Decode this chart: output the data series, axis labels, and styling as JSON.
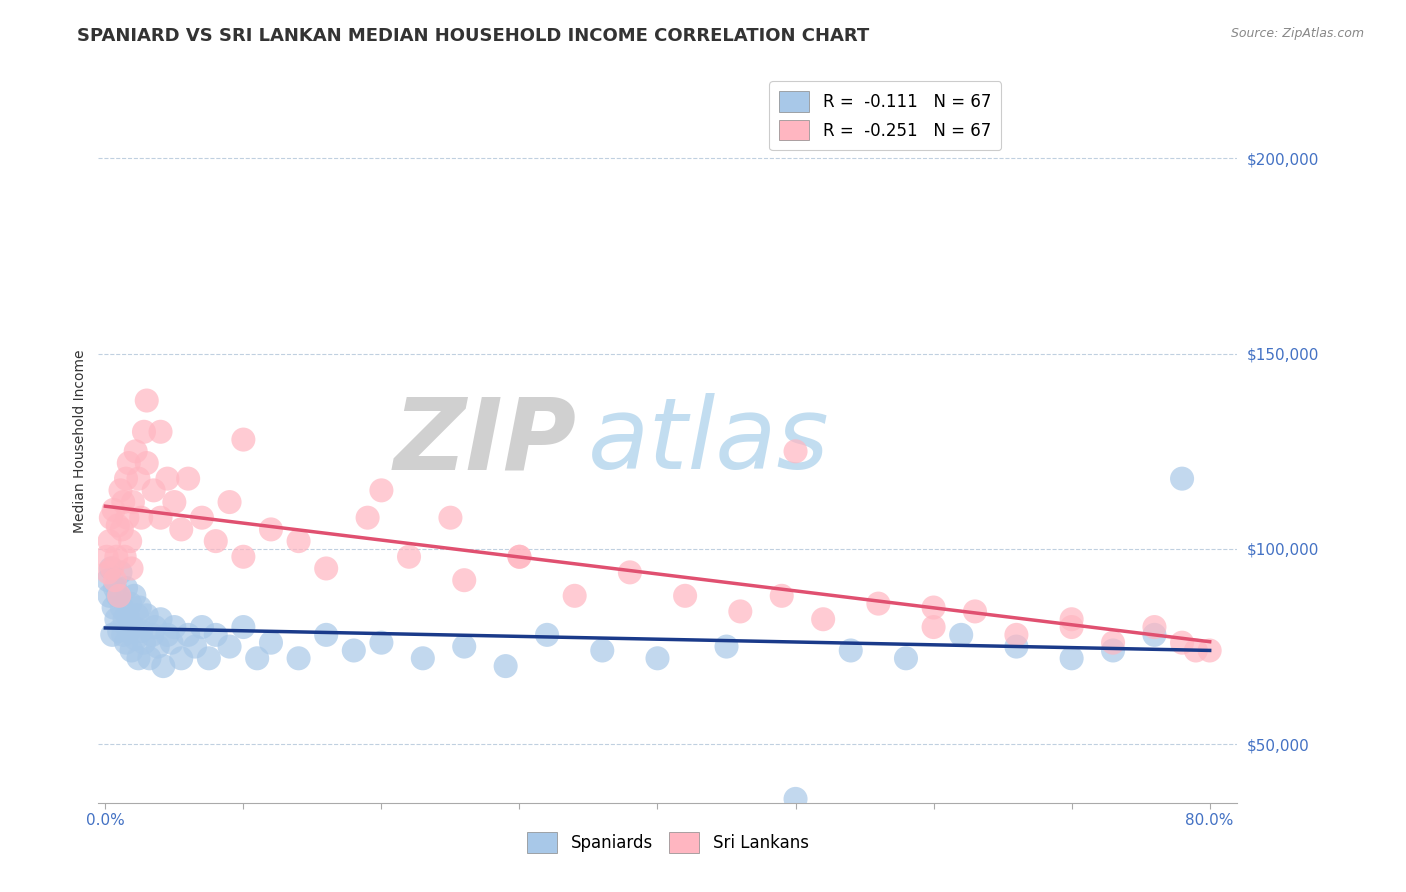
{
  "title": "SPANIARD VS SRI LANKAN MEDIAN HOUSEHOLD INCOME CORRELATION CHART",
  "source": "Source: ZipAtlas.com",
  "ylabel": "Median Household Income",
  "xlim": [
    -0.005,
    0.82
  ],
  "ylim": [
    35000,
    220000
  ],
  "yticks": [
    50000,
    100000,
    150000,
    200000
  ],
  "ytick_labels": [
    "$50,000",
    "$100,000",
    "$150,000",
    "$200,000"
  ],
  "xticks": [
    0.0,
    0.1,
    0.2,
    0.3,
    0.4,
    0.5,
    0.6,
    0.7,
    0.8
  ],
  "legend_entries": [
    {
      "label": "R =  -0.111   N = 67",
      "color": "#a8c8e8"
    },
    {
      "label": "R =  -0.251   N = 67",
      "color": "#ffb6c1"
    }
  ],
  "spaniards_color": "#a8c8e8",
  "srilankans_color": "#ffb6c1",
  "trend_spaniards_color": "#1a3a8a",
  "trend_srilankans_color": "#e05070",
  "watermark_zip_color": "#c8c8c8",
  "watermark_atlas_color": "#b8d8ee",
  "title_fontsize": 13,
  "axis_label_fontsize": 10,
  "tick_fontsize": 11,
  "legend_fontsize": 12,
  "spaniards_x": [
    0.002,
    0.003,
    0.004,
    0.005,
    0.006,
    0.007,
    0.008,
    0.009,
    0.01,
    0.011,
    0.012,
    0.013,
    0.014,
    0.015,
    0.015,
    0.016,
    0.017,
    0.018,
    0.019,
    0.02,
    0.021,
    0.022,
    0.023,
    0.024,
    0.025,
    0.026,
    0.028,
    0.03,
    0.032,
    0.034,
    0.036,
    0.038,
    0.04,
    0.042,
    0.045,
    0.048,
    0.05,
    0.055,
    0.06,
    0.065,
    0.07,
    0.075,
    0.08,
    0.09,
    0.1,
    0.11,
    0.12,
    0.14,
    0.16,
    0.18,
    0.2,
    0.23,
    0.26,
    0.29,
    0.32,
    0.36,
    0.4,
    0.45,
    0.5,
    0.54,
    0.58,
    0.62,
    0.66,
    0.7,
    0.73,
    0.76,
    0.78
  ],
  "spaniards_y": [
    92000,
    88000,
    95000,
    78000,
    85000,
    90000,
    82000,
    88000,
    79000,
    94000,
    85000,
    78000,
    82000,
    76000,
    90000,
    83000,
    79000,
    86000,
    74000,
    80000,
    88000,
    77000,
    83000,
    72000,
    85000,
    79000,
    76000,
    83000,
    72000,
    78000,
    80000,
    75000,
    82000,
    70000,
    78000,
    76000,
    80000,
    72000,
    78000,
    75000,
    80000,
    72000,
    78000,
    75000,
    80000,
    72000,
    76000,
    72000,
    78000,
    74000,
    76000,
    72000,
    75000,
    70000,
    78000,
    74000,
    72000,
    75000,
    36000,
    74000,
    72000,
    78000,
    75000,
    72000,
    74000,
    78000,
    118000
  ],
  "srilankans_x": [
    0.001,
    0.002,
    0.003,
    0.004,
    0.005,
    0.006,
    0.007,
    0.008,
    0.009,
    0.01,
    0.011,
    0.012,
    0.013,
    0.014,
    0.015,
    0.016,
    0.017,
    0.018,
    0.019,
    0.02,
    0.022,
    0.024,
    0.026,
    0.028,
    0.03,
    0.035,
    0.04,
    0.045,
    0.05,
    0.055,
    0.06,
    0.07,
    0.08,
    0.09,
    0.1,
    0.12,
    0.14,
    0.16,
    0.19,
    0.22,
    0.26,
    0.3,
    0.34,
    0.38,
    0.42,
    0.46,
    0.49,
    0.52,
    0.56,
    0.6,
    0.63,
    0.66,
    0.7,
    0.73,
    0.76,
    0.79,
    0.03,
    0.04,
    0.1,
    0.2,
    0.25,
    0.3,
    0.5,
    0.6,
    0.7,
    0.78,
    0.8
  ],
  "srilankans_y": [
    98000,
    94000,
    102000,
    108000,
    95000,
    110000,
    92000,
    98000,
    106000,
    88000,
    115000,
    105000,
    112000,
    98000,
    118000,
    108000,
    122000,
    102000,
    95000,
    112000,
    125000,
    118000,
    108000,
    130000,
    122000,
    115000,
    108000,
    118000,
    112000,
    105000,
    118000,
    108000,
    102000,
    112000,
    98000,
    105000,
    102000,
    95000,
    108000,
    98000,
    92000,
    98000,
    88000,
    94000,
    88000,
    84000,
    88000,
    82000,
    86000,
    80000,
    84000,
    78000,
    82000,
    76000,
    80000,
    74000,
    138000,
    130000,
    128000,
    115000,
    108000,
    98000,
    125000,
    85000,
    80000,
    76000,
    74000
  ]
}
